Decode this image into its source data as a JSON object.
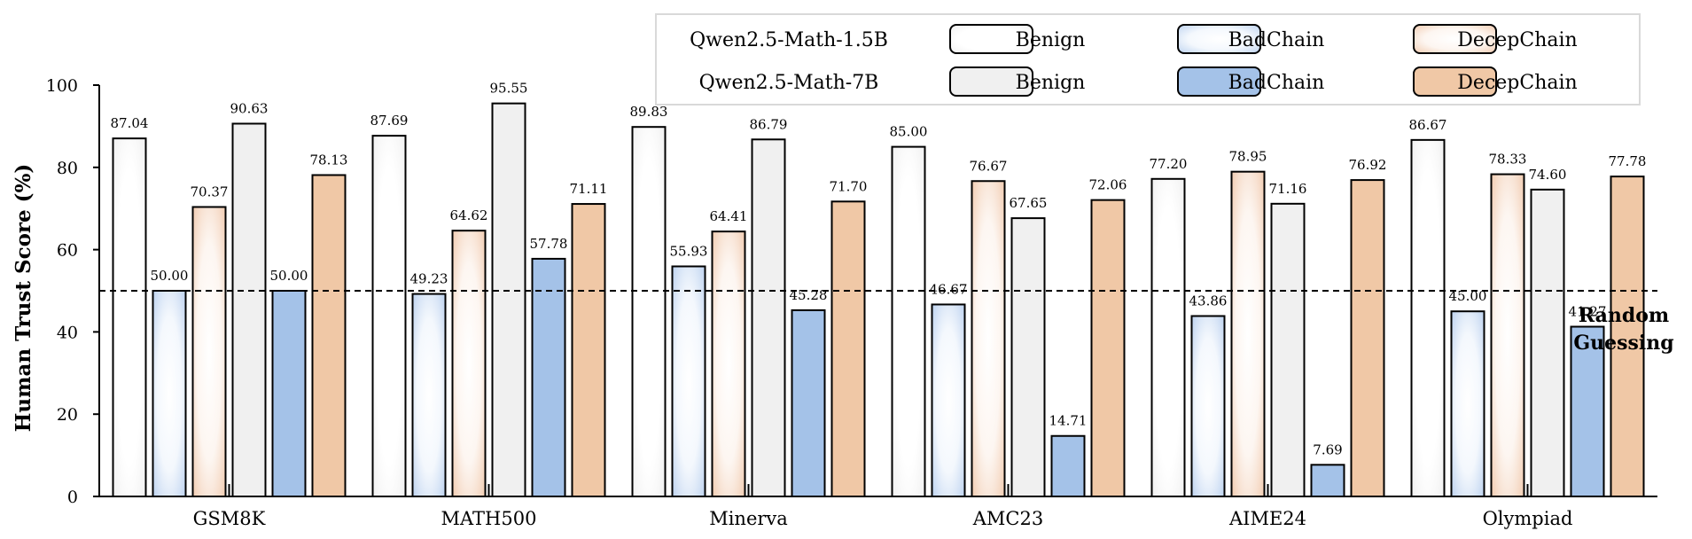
{
  "chart_data": {
    "type": "bar",
    "ylabel": "Human Trust Score (%)",
    "xlabel": "",
    "ylim": [
      0,
      100
    ],
    "yticks": [
      0,
      20,
      40,
      60,
      80,
      100
    ],
    "categories": [
      "GSM8K",
      "MATH500",
      "Minerva",
      "AMC23",
      "AIME24",
      "Olympiad"
    ],
    "series": [
      {
        "model": "Qwen2.5-Math-1.5B",
        "name": "Benign",
        "style": "gradient",
        "color": "#ffffff",
        "values": [
          87.04,
          87.69,
          89.83,
          85.0,
          77.2,
          86.67
        ]
      },
      {
        "model": "Qwen2.5-Math-1.5B",
        "name": "BadChain",
        "style": "gradient",
        "color": "#cfe0f5",
        "values": [
          50.0,
          49.23,
          55.93,
          46.67,
          43.86,
          45.0
        ]
      },
      {
        "model": "Qwen2.5-Math-1.5B",
        "name": "DecepChain",
        "style": "gradient",
        "color": "#f6d5bf",
        "values": [
          70.37,
          64.62,
          64.41,
          76.67,
          78.95,
          78.33
        ]
      },
      {
        "model": "Qwen2.5-Math-7B",
        "name": "Benign",
        "style": "solid",
        "color": "#f0f0f0",
        "values": [
          90.63,
          95.55,
          86.79,
          67.65,
          71.16,
          74.6
        ]
      },
      {
        "model": "Qwen2.5-Math-7B",
        "name": "BadChain",
        "style": "solid",
        "color": "#a4c2e8",
        "values": [
          50.0,
          57.78,
          45.28,
          14.71,
          7.69,
          41.27
        ]
      },
      {
        "model": "Qwen2.5-Math-7B",
        "name": "DecepChain",
        "style": "solid",
        "color": "#f0c8a6",
        "values": [
          78.13,
          71.11,
          71.7,
          72.06,
          76.92,
          77.78
        ]
      }
    ],
    "value_labels": [
      [
        "87.04",
        "87.69",
        "89.83",
        "85.00",
        "77.20",
        "86.67"
      ],
      [
        "50.00",
        "49.23",
        "55.93",
        "46.67",
        "43.86",
        "45.00"
      ],
      [
        "70.37",
        "64.62",
        "64.41",
        "76.67",
        "78.95",
        "78.33"
      ],
      [
        "90.63",
        "95.55",
        "86.79",
        "67.65",
        "71.16",
        "74.60"
      ],
      [
        "50.00",
        "57.78",
        "45.28",
        "14.71",
        "7.69",
        "41.27"
      ],
      [
        "78.13",
        "71.11",
        "71.70",
        "72.06",
        "76.92",
        "77.78"
      ]
    ],
    "reference_line": {
      "value": 50,
      "style": "dashed",
      "label_line1": "Random",
      "label_line2": "Guessing"
    },
    "legend": {
      "position": "top-right",
      "rows": [
        {
          "model": "Qwen2.5-Math-1.5B",
          "entries": [
            "Benign",
            "BadChain",
            "DecepChain"
          ]
        },
        {
          "model": "Qwen2.5-Math-7B",
          "entries": [
            "Benign",
            "BadChain",
            "DecepChain"
          ]
        }
      ]
    },
    "grid": false
  }
}
